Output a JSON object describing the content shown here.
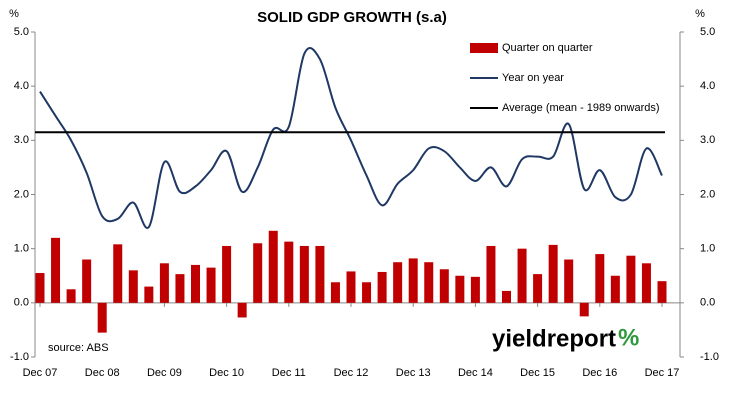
{
  "chart_data": {
    "type": "bar_line",
    "title": "SOLID GDP GROWTH (s.a)",
    "y_unit": "%",
    "y2_unit": "%",
    "source": "source: ABS",
    "logo": "yieldreport",
    "logo_mark": "%",
    "categories": [
      "Dec 07",
      null,
      null,
      null,
      "Dec 08",
      null,
      null,
      null,
      "Dec 09",
      null,
      null,
      null,
      "Dec 10",
      null,
      null,
      null,
      "Dec 11",
      null,
      null,
      null,
      "Dec 12",
      null,
      null,
      null,
      "Dec 13",
      null,
      null,
      null,
      "Dec 14",
      null,
      null,
      null,
      "Dec 15",
      null,
      null,
      null,
      "Dec 16",
      null,
      null,
      null,
      "Dec 17"
    ],
    "series": [
      {
        "name": "Quarter on quarter",
        "kind": "bar",
        "color": "#c00000",
        "values": [
          0.55,
          1.2,
          0.25,
          0.8,
          -0.55,
          1.08,
          0.6,
          0.3,
          0.73,
          0.53,
          0.7,
          0.65,
          1.05,
          -0.27,
          1.1,
          1.33,
          1.13,
          1.05,
          1.05,
          0.38,
          0.58,
          0.38,
          0.57,
          0.75,
          0.82,
          0.75,
          0.62,
          0.5,
          0.48,
          1.05,
          0.22,
          1.0,
          0.53,
          1.07,
          0.8,
          -0.25,
          0.9,
          0.5,
          0.87,
          0.73,
          0.4
        ]
      },
      {
        "name": "Year on year",
        "kind": "line",
        "color": "#1f3864",
        "values": [
          3.9,
          3.45,
          3.0,
          2.4,
          1.6,
          1.55,
          1.85,
          1.4,
          2.6,
          2.05,
          2.15,
          2.45,
          2.8,
          2.05,
          2.5,
          3.2,
          3.25,
          4.6,
          4.5,
          3.6,
          3.0,
          2.35,
          1.8,
          2.2,
          2.45,
          2.85,
          2.8,
          2.5,
          2.25,
          2.5,
          2.15,
          2.65,
          2.7,
          2.7,
          3.3,
          2.1,
          2.45,
          1.95,
          2.0,
          2.85,
          2.35
        ]
      },
      {
        "name": "Average (mean - 1989 onwards)",
        "kind": "hline",
        "color": "#000000",
        "value": 3.15
      }
    ],
    "ylim": [
      -1.0,
      5.0
    ],
    "yticks": [
      {
        "value": -1,
        "label": "-1.0"
      },
      {
        "value": 0,
        "label": "0.0"
      },
      {
        "value": 1,
        "label": "1.0"
      },
      {
        "value": 2,
        "label": "2.0"
      },
      {
        "value": 3,
        "label": "3.0"
      },
      {
        "value": 4,
        "label": "4.0"
      },
      {
        "value": 5,
        "label": "5.0"
      }
    ],
    "y2lim": [
      -1.0,
      5.0
    ],
    "y2ticks": [
      {
        "value": -1,
        "label": "-1.0"
      },
      {
        "value": 0,
        "label": "0.0"
      },
      {
        "value": 1,
        "label": "1.0"
      },
      {
        "value": 2,
        "label": "2.0"
      },
      {
        "value": 3,
        "label": "3.0"
      },
      {
        "value": 4,
        "label": "4.0"
      },
      {
        "value": 5,
        "label": "5.0"
      }
    ],
    "legend": "top-right",
    "grid": false
  }
}
